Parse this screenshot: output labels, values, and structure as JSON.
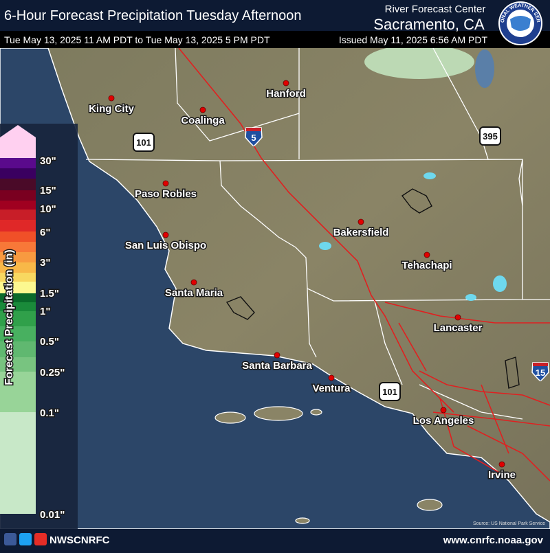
{
  "header": {
    "title": "6-Hour Forecast Precipitation Tuesday Afternoon",
    "office": "River Forecast Center",
    "location": "Sacramento, CA",
    "valid": "Tue May 13, 2025 11 AM PDT to Tue May 13, 2025 5 PM PDT",
    "issued": "Issued May 11, 2025 6:56 AM PDT",
    "logo": "NATIONAL WEATHER SERVICE"
  },
  "legend": {
    "title": "Forecast Precipitation (in)",
    "labels": [
      "30\"",
      "15\"",
      "10\"",
      "6\"",
      "3\"",
      "1.5\"",
      "1\"",
      "0.5\"",
      "0.25\"",
      "0.1\"",
      "0.01\""
    ]
  },
  "map": {
    "cities": [
      "King City",
      "Coalinga",
      "Hanford",
      "Paso Robles",
      "San Luis Obispo",
      "Santa Maria",
      "Bakersfield",
      "Tehachapi",
      "Lancaster",
      "Santa Barbara",
      "Ventura",
      "Los Angeles",
      "Irvine"
    ],
    "shields": [
      "101",
      "5",
      "395",
      "101",
      "15"
    ],
    "source": "Source: US National Park Service"
  },
  "footer": {
    "handle": "NWSCNRFC",
    "url": "www.cnrfc.noaa.gov"
  }
}
